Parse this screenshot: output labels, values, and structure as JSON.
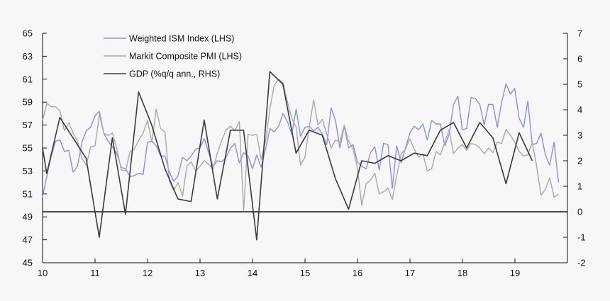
{
  "chart_data": {
    "type": "line",
    "title": "",
    "xlabel": "",
    "ylabel_left": "",
    "ylabel_right": "",
    "x_range": [
      2010.0,
      2020.0
    ],
    "ylim_left": [
      45,
      65
    ],
    "ylim_right": [
      -2,
      7
    ],
    "left_ticks": [
      45,
      47,
      49,
      51,
      53,
      55,
      57,
      59,
      61,
      63,
      65
    ],
    "right_ticks": [
      -2,
      -1,
      0,
      1,
      2,
      3,
      4,
      5,
      6,
      7
    ],
    "x_ticks": [
      {
        "value": 2010.0,
        "label": "10"
      },
      {
        "value": 2011.0,
        "label": "11"
      },
      {
        "value": 2012.0,
        "label": "12"
      },
      {
        "value": 2013.0,
        "label": "13"
      },
      {
        "value": 2014.0,
        "label": "14"
      },
      {
        "value": 2015.0,
        "label": "15"
      },
      {
        "value": 2016.0,
        "label": "16"
      },
      {
        "value": 2017.0,
        "label": "17"
      },
      {
        "value": 2018.0,
        "label": "18"
      },
      {
        "value": 2019.0,
        "label": "19"
      }
    ],
    "legend": {
      "placement": "top-left",
      "entries": [
        {
          "name": "Weighted ISM Index (LHS)",
          "color": "#8a8fe6"
        },
        {
          "name": "Markit Composite PMI (LHS)",
          "color": "#a9a9a9"
        },
        {
          "name": "GDP (%q/q ann., RHS)",
          "color": "#3a3a3a"
        }
      ]
    },
    "zero_line": {
      "axis": "right",
      "value": 0
    },
    "series": [
      {
        "name": "Weighted ISM Index (LHS)",
        "axis": "left",
        "color": "#8a8fe6",
        "x_start": 2010.0,
        "x_step": 0.0833,
        "values": [
          50.7,
          52.6,
          54.3,
          55.6,
          55.7,
          54.7,
          54.8,
          52.9,
          53.4,
          55.5,
          56.5,
          56.8,
          57.8,
          58.2,
          56.3,
          55.6,
          55.1,
          54.5,
          53.3,
          53.2,
          52.5,
          52.6,
          52.8,
          52.7,
          55.5,
          55.6,
          55.2,
          54.3,
          54.3,
          52.9,
          52.1,
          52.6,
          54.2,
          53.9,
          54.3,
          54.9,
          55.0,
          55.8,
          54.6,
          53.4,
          53.9,
          53.8,
          54.2,
          55.0,
          55.4,
          53.7,
          54.6,
          54.3,
          53.2,
          54.4,
          53.3,
          54.9,
          56.7,
          56.4,
          56.9,
          58.0,
          57.3,
          56.2,
          58.4,
          56.0,
          56.8,
          56.9,
          56.5,
          56.8,
          56.2,
          55.3,
          58.5,
          57.4,
          55.0,
          56.9,
          55.0,
          55.3,
          53.8,
          53.4,
          53.2,
          54.6,
          55.1,
          53.1,
          55.4,
          55.3,
          51.5,
          55.2,
          53.7,
          55.0,
          56.3,
          56.9,
          56.6,
          57.1,
          55.7,
          57.4,
          57.1,
          57.1,
          55.2,
          56.2,
          58.8,
          59.5,
          56.6,
          56.7,
          59.4,
          59.3,
          58.8,
          57.0,
          58.8,
          58.8,
          56.8,
          59.0,
          60.6,
          59.7,
          60.2,
          57.6,
          56.8,
          59.1,
          55.3,
          55.4,
          56.3,
          54.4,
          53.5,
          55.5,
          52.0
        ]
      },
      {
        "name": "Markit Composite PMI (LHS)",
        "axis": "left",
        "color": "#a9a9a9",
        "x_start": 2010.0,
        "x_step": 0.0833,
        "values": [
          57.4,
          58.9,
          58.6,
          58.6,
          58.2,
          56.5,
          57.2,
          56.3,
          55.6,
          54.1,
          53.5,
          55.1,
          55.2,
          57.9,
          56.3,
          56.1,
          56.3,
          54.9,
          53.1,
          53.0,
          54.7,
          54.9,
          55.7,
          56.3,
          57.4,
          55.5,
          58.4,
          56.7,
          56.4,
          52.1,
          51.3,
          52.0,
          50.8,
          53.4,
          53.8,
          53.0,
          53.4,
          53.9,
          53.6,
          53.2,
          54.6,
          55.7,
          56.6,
          56.9,
          56.5,
          57.3,
          49.5,
          56.2,
          56.1,
          56.2,
          54.0,
          55.6,
          58.4,
          60.5,
          61.0,
          60.7,
          59.0,
          57.6,
          56.8,
          53.5,
          54.2,
          56.8,
          59.2,
          57.0,
          57.5,
          56.2,
          55.0,
          55.7,
          55.5,
          57.0,
          55.6,
          54.9,
          53.3,
          50.0,
          51.9,
          52.2,
          52.8,
          51.0,
          51.2,
          51.5,
          50.5,
          52.6,
          54.5,
          54.9,
          55.8,
          54.9,
          54.2,
          54.5,
          53.0,
          53.2,
          54.7,
          54.4,
          55.5,
          56.6,
          54.5,
          55.0,
          55.3,
          54.8,
          55.4,
          55.3,
          55.0,
          54.5,
          55.0,
          54.6,
          55.5,
          55.4,
          56.6,
          56.1,
          55.5,
          54.7,
          54.3,
          54.4,
          55.5,
          53.4,
          50.9,
          51.4,
          52.4,
          50.7,
          51.0
        ]
      },
      {
        "name": "GDP (%q/q ann., RHS)",
        "axis": "right",
        "color": "#3a3a3a",
        "points": [
          [
            2010.0,
            2.5
          ],
          [
            2010.08,
            1.5
          ],
          [
            2010.33,
            3.7
          ],
          [
            2010.83,
            2.1
          ],
          [
            2011.08,
            -1.0
          ],
          [
            2011.33,
            2.9
          ],
          [
            2011.58,
            -0.1
          ],
          [
            2011.83,
            4.7
          ],
          [
            2012.08,
            3.4
          ],
          [
            2012.33,
            1.7
          ],
          [
            2012.58,
            0.5
          ],
          [
            2012.83,
            0.4
          ],
          [
            2013.08,
            3.6
          ],
          [
            2013.33,
            0.5
          ],
          [
            2013.58,
            3.2
          ],
          [
            2013.83,
            3.2
          ],
          [
            2014.08,
            -1.1
          ],
          [
            2014.33,
            5.5
          ],
          [
            2014.58,
            5.0
          ],
          [
            2014.83,
            2.3
          ],
          [
            2015.08,
            3.2
          ],
          [
            2015.33,
            3.0
          ],
          [
            2015.58,
            1.3
          ],
          [
            2015.83,
            0.1
          ],
          [
            2016.08,
            2.0
          ],
          [
            2016.33,
            1.9
          ],
          [
            2016.58,
            2.2
          ],
          [
            2016.83,
            2.0
          ],
          [
            2017.08,
            2.3
          ],
          [
            2017.33,
            2.2
          ],
          [
            2017.58,
            3.2
          ],
          [
            2017.83,
            3.5
          ],
          [
            2018.08,
            2.5
          ],
          [
            2018.33,
            3.5
          ],
          [
            2018.58,
            2.9
          ],
          [
            2018.83,
            1.1
          ],
          [
            2019.08,
            3.1
          ],
          [
            2019.33,
            2.0
          ]
        ]
      }
    ]
  }
}
